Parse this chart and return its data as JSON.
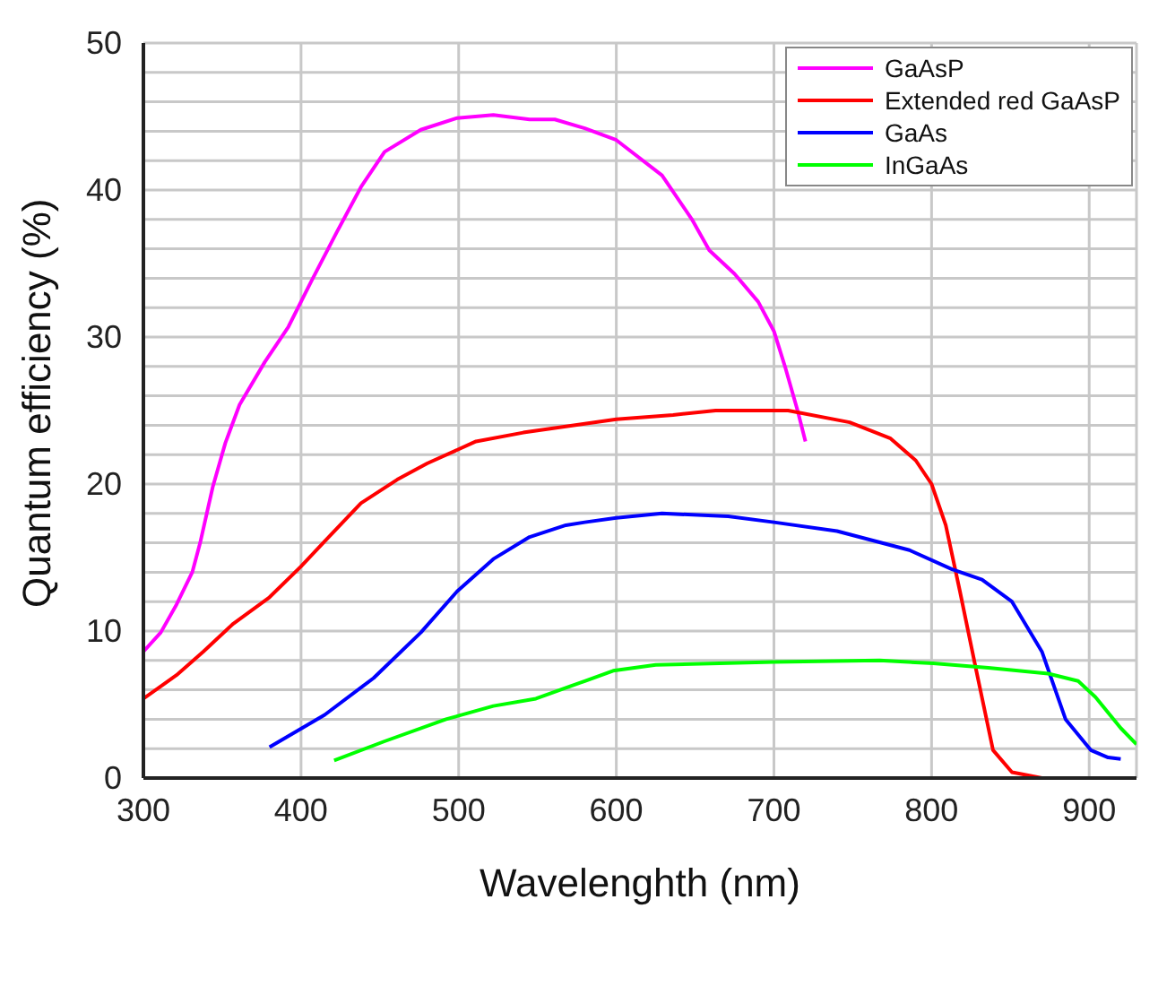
{
  "chart_data": {
    "type": "line",
    "xlabel": "Wavelenghth (nm)",
    "ylabel": "Quantum efficiency (%)",
    "xlim": [
      300,
      930
    ],
    "xticks": [
      300,
      400,
      500,
      600,
      700,
      800,
      900
    ],
    "ylim": [
      0,
      50
    ],
    "yticks": [
      0,
      {
        "value": 2,
        "label": null
      },
      {
        "value": 4,
        "label": null
      },
      {
        "value": 6,
        "label": null
      },
      {
        "value": 8,
        "label": null
      },
      10,
      {
        "value": 12,
        "label": null
      },
      {
        "value": 14,
        "label": null
      },
      {
        "value": 16,
        "label": null
      },
      {
        "value": 18,
        "label": null
      },
      20,
      {
        "value": 22,
        "label": null
      },
      {
        "value": 24,
        "label": null
      },
      {
        "value": 26,
        "label": null
      },
      {
        "value": 28,
        "label": null
      },
      30,
      {
        "value": 32,
        "label": null
      },
      {
        "value": 34,
        "label": null
      },
      {
        "value": 36,
        "label": null
      },
      {
        "value": 38,
        "label": null
      },
      40,
      {
        "value": 42,
        "label": null
      },
      {
        "value": 44,
        "label": null
      },
      {
        "value": 46,
        "label": null
      },
      {
        "value": 48,
        "label": null
      },
      50
    ],
    "grid": true,
    "legend": "top right",
    "marker": "none",
    "line_style": "solid",
    "series": [
      {
        "name": "GaAsP",
        "color": "#ff00ff",
        "x": [
          300,
          311,
          321,
          331,
          336,
          344,
          352,
          361,
          377,
          392,
          407,
          423,
          438,
          453,
          476,
          499,
          522,
          545,
          561,
          580,
          600,
          629,
          648,
          659,
          675,
          690,
          700,
          707,
          715,
          720
        ],
        "values": [
          8.6,
          9.9,
          11.8,
          14,
          16,
          19.8,
          22.8,
          25.4,
          28.3,
          30.7,
          33.9,
          37.2,
          40.2,
          42.6,
          44.1,
          44.9,
          45.1,
          44.8,
          44.8,
          44.2,
          43.4,
          41,
          38,
          35.9,
          34.3,
          32.4,
          30.4,
          28,
          25,
          22.9
        ]
      },
      {
        "name": "Extended red GaAsP",
        "color": "#ff0000",
        "x": [
          300,
          321,
          338,
          357,
          380,
          400,
          415,
          438,
          461,
          480,
          511,
          541,
          580,
          600,
          636,
          663,
          709,
          748,
          774,
          790,
          800,
          809,
          818,
          828,
          839,
          851,
          870
        ],
        "values": [
          5.4,
          7,
          8.6,
          10.5,
          12.3,
          14.4,
          16.1,
          18.7,
          20.3,
          21.4,
          22.9,
          23.5,
          24.1,
          24.4,
          24.7,
          25,
          25,
          24.2,
          23.1,
          21.6,
          20,
          17.2,
          12.7,
          7.5,
          1.9,
          0.4,
          0
        ]
      },
      {
        "name": "GaAs",
        "color": "#0000ff",
        "x": [
          380,
          415,
          446,
          476,
          499,
          522,
          545,
          568,
          580,
          600,
          629,
          671,
          700,
          740,
          786,
          813,
          832,
          851,
          870,
          885,
          901,
          912,
          920
        ],
        "values": [
          2.1,
          4.3,
          6.8,
          9.9,
          12.7,
          14.9,
          16.4,
          17.2,
          17.4,
          17.7,
          18,
          17.8,
          17.4,
          16.8,
          15.5,
          14.2,
          13.5,
          12,
          8.6,
          4,
          1.9,
          1.4,
          1.3
        ]
      },
      {
        "name": "InGaAs",
        "color": "#00ff00",
        "x": [
          421,
          453,
          492,
          522,
          549,
          580,
          598,
          625,
          700,
          767,
          801,
          836,
          874,
          893,
          904,
          920,
          930
        ],
        "values": [
          1.2,
          2.5,
          4,
          4.9,
          5.4,
          6.6,
          7.3,
          7.7,
          7.9,
          8,
          7.8,
          7.5,
          7.1,
          6.6,
          5.5,
          3.4,
          2.3
        ]
      }
    ]
  }
}
